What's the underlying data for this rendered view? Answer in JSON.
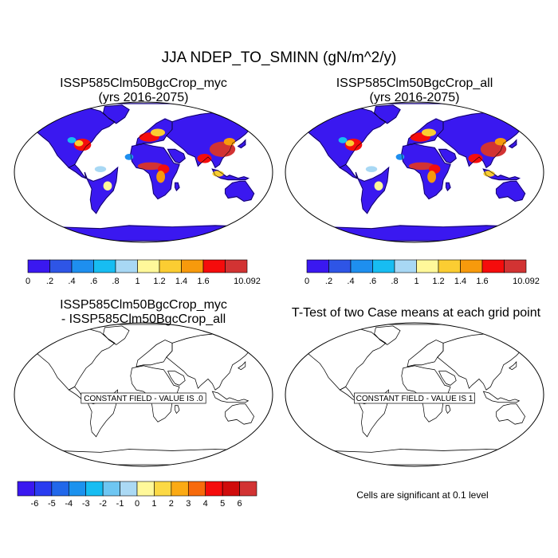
{
  "title": "JJA NDEP_TO_SMINN (gN/m^2/y)",
  "panels": [
    {
      "line1": "ISSP585Clm50BgcCrop_myc",
      "line2": "(yrs 2016-2075)"
    },
    {
      "line1": "ISSP585Clm50BgcCrop_all",
      "line2": "(yrs 2016-2075)"
    },
    {
      "line1": "ISSP585Clm50BgcCrop_myc",
      "line2": "- ISSP585Clm50BgcCrop_all",
      "constant_label": "CONSTANT FIELD - VALUE IS .0"
    },
    {
      "line1": "T-Test of two Case means at each grid point",
      "constant_label": "CONSTANT FIELD - VALUE IS 1"
    }
  ],
  "colorbar_top": {
    "labels": [
      "0",
      ".2",
      ".4",
      ".6",
      ".8",
      "1",
      "1.2",
      "1.4",
      "1.6",
      "10.092"
    ],
    "colors": [
      "#3a18f0",
      "#2e55e6",
      "#1e8fef",
      "#17bdf2",
      "#a8d8f4",
      "#fff89a",
      "#fbcd32",
      "#f79a0c",
      "#f50c0c",
      "#d23333"
    ]
  },
  "colorbar_diff": {
    "labels": [
      "-6",
      "-5",
      "-4",
      "-3",
      "-2",
      "-1",
      "0",
      "1",
      "2",
      "3",
      "4",
      "5",
      "6"
    ],
    "colors": [
      "#3a18f0",
      "#2a3cf0",
      "#2268ea",
      "#1c92ee",
      "#17bdf2",
      "#6ec6f2",
      "#abd9f4",
      "#fff89a",
      "#fcd945",
      "#fbaa14",
      "#f76a0c",
      "#f50c0c",
      "#d00c0c",
      "#d23333"
    ]
  },
  "significance_note": "Cells are significant at 0.1 level"
}
